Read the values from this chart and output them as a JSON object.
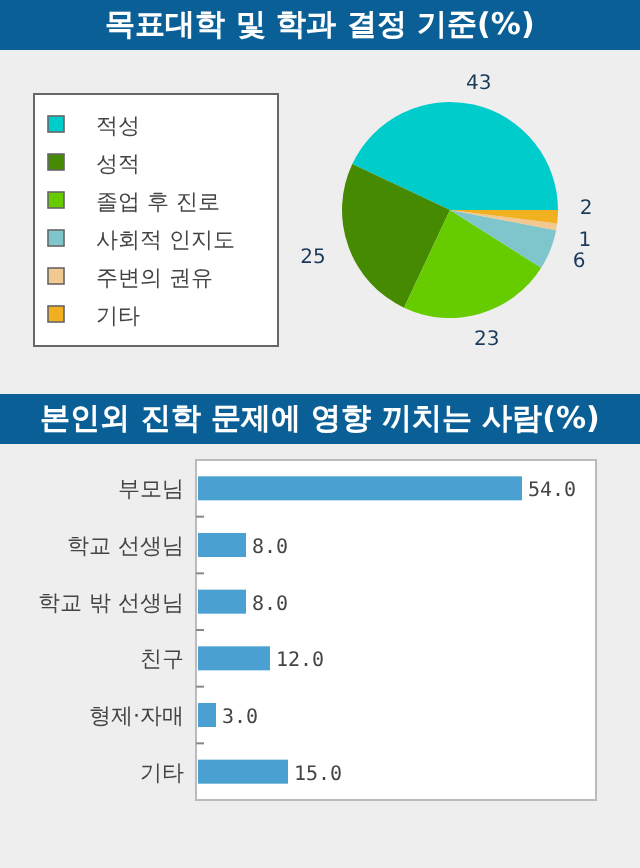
{
  "chart_data": [
    {
      "type": "pie",
      "title": "목표대학 및 학과 결정 기준(%)",
      "categories": [
        "적성",
        "성적",
        "졸업 후 진로",
        "사회적 인지도",
        "주변의 권유",
        "기타"
      ],
      "values": [
        43,
        25,
        23,
        6,
        1,
        2
      ],
      "colors": [
        "#00cccc",
        "#458a00",
        "#66cc00",
        "#7fc6cc",
        "#f0c890",
        "#f0b020"
      ],
      "legend": "left",
      "data_labels": true
    },
    {
      "type": "bar",
      "title": "본인외 진학 문제에 영향 끼치는 사람(%)",
      "orientation": "horizontal",
      "categories": [
        "부모님",
        "학교 선생님",
        "학교 밖 선생님",
        "친구",
        "형제·자매",
        "기타"
      ],
      "values": [
        54.0,
        8.0,
        8.0,
        12.0,
        3.0,
        15.0
      ],
      "value_labels": [
        "54.0",
        "8.0",
        "8.0",
        "12.0",
        "3.0",
        "15.0"
      ],
      "color": "#4aa0d0"
    }
  ]
}
